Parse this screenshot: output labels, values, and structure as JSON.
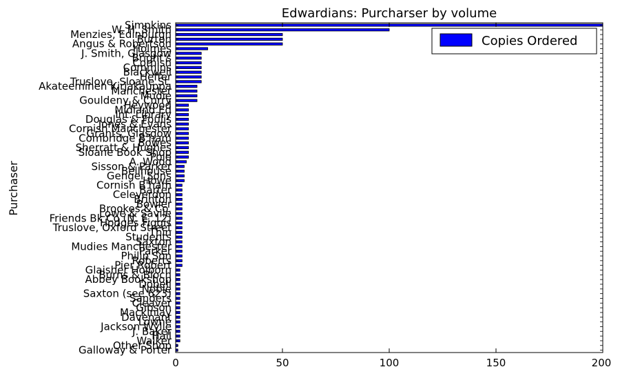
{
  "chart_data": {
    "type": "bar",
    "orientation": "horizontal",
    "title": "Edwardians: Purcharser by volume",
    "xlabel": "",
    "ylabel": "Purchaser",
    "xlim": [
      0,
      200
    ],
    "xticks": [
      0,
      50,
      100,
      150,
      200
    ],
    "grid": false,
    "legend_position": "top-right",
    "bar_color": "#0000ff",
    "series": [
      {
        "name": "Copies Ordered"
      }
    ],
    "categories": [
      "Simpkins",
      "W. H. Smith",
      "Menzies, Edinburgh",
      "Burton",
      "Angus & Robertson",
      "Holmes",
      "J. Smith, Glasgow",
      "Bright's",
      "Cornish",
      "Commins",
      "Blackwell",
      "Heffer",
      "Truslove, Sloane St.",
      "Akateeminen Kirjakauppa",
      "Manchester",
      "Mudie",
      "Gouldeny & Curry",
      "Heywood",
      "Midland Ed",
      "Int. Library",
      "Douglas & Foulis",
      "Jones & Evans",
      "Cornish Manchester",
      "Grants, Glasgow",
      "Combridge B'ham",
      "Bowes",
      "Sherratt & Hughes",
      "Sloane Book Shop",
      "Pole",
      "A. Wood",
      "Sisson & Parker",
      "Bellhouse",
      "Gengel Sons",
      "Howe",
      "Cornish B'ham",
      "Barter",
      "Celeverdon",
      "Brinton",
      "Bowler",
      "Brookes & Co.",
      "Lowe & Savile",
      "Friends Bk Co (N. E. 12)",
      "Hodges Figgis",
      "Truslove, Oxford Street",
      "Thin",
      "Students",
      "Saxton",
      "Mudies Manchester",
      "Parker",
      "Philip Son",
      "Roberts",
      "Pier Robert",
      "Glaisher Holborn",
      "Burns & Bloch",
      "Abbey Bookshop",
      "Dobell",
      "Noble",
      "Saxton (see 623)",
      "Sanders",
      "Cleaver",
      "Gibson",
      "Mackinlay",
      "Davenant",
      "Lowne",
      "Jackson Wylie",
      "J. Baker",
      "Hall",
      "Walker",
      "Other Shop",
      "Galloway & Porter"
    ],
    "values": [
      200,
      100,
      50,
      50,
      50,
      15,
      12,
      12,
      12,
      12,
      12,
      12,
      12,
      10,
      10,
      10,
      10,
      6,
      6,
      6,
      6,
      6,
      6,
      6,
      6,
      6,
      6,
      6,
      6,
      5,
      4,
      4,
      4,
      4,
      3,
      3,
      3,
      3,
      3,
      3,
      3,
      3,
      3,
      3,
      3,
      3,
      3,
      3,
      3,
      3,
      3,
      3,
      2,
      2,
      2,
      2,
      2,
      2,
      2,
      2,
      2,
      2,
      2,
      2,
      2,
      2,
      2,
      2,
      1,
      1
    ]
  }
}
